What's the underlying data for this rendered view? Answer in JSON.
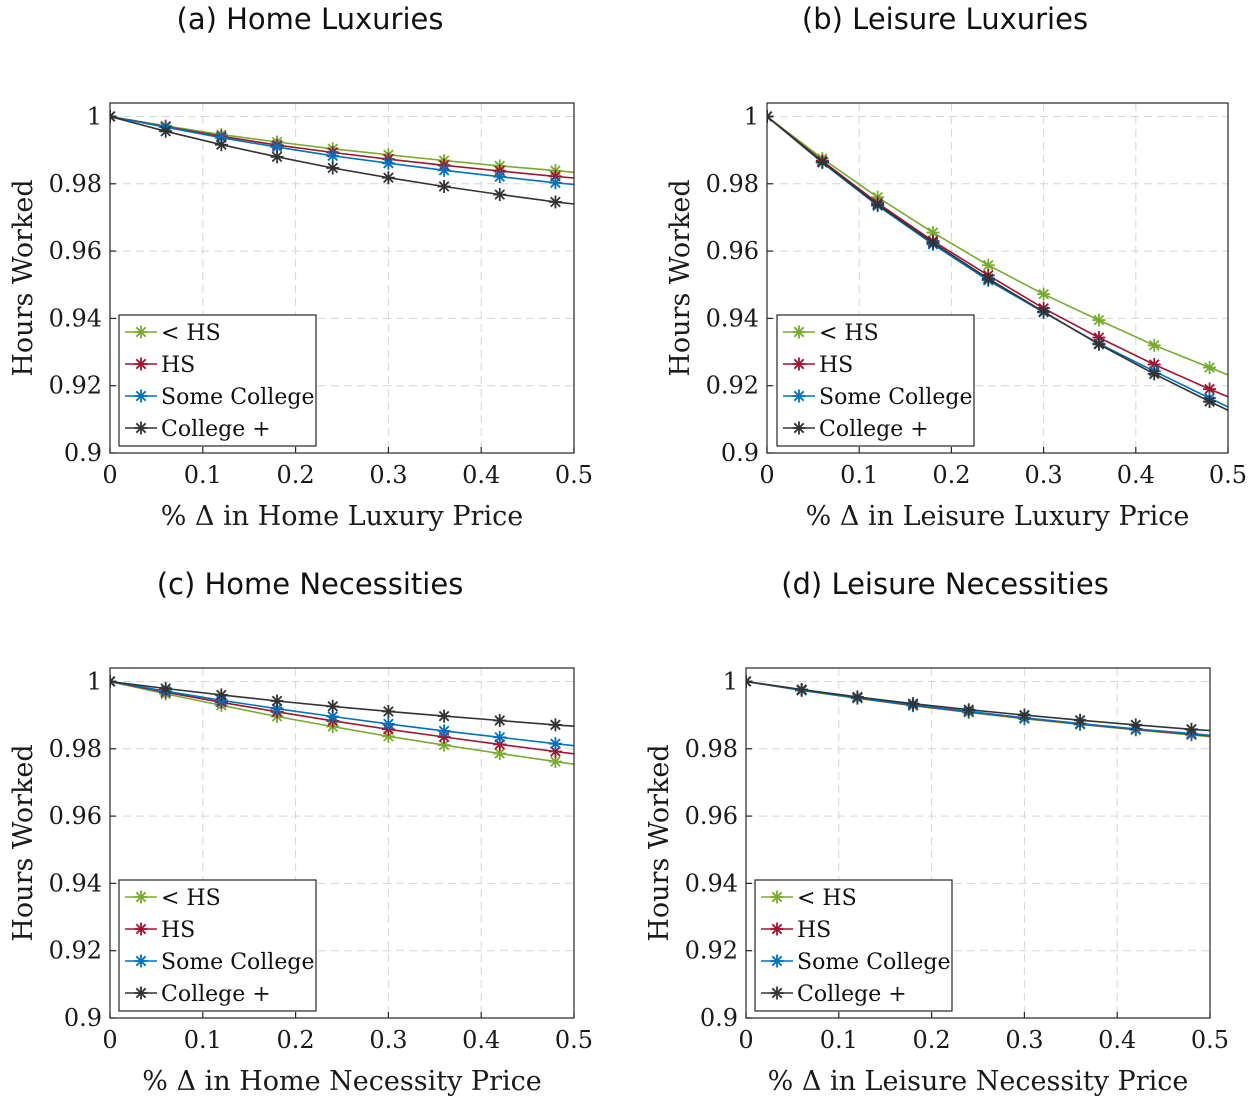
{
  "colors": {
    "lt_hs": "#77AC30",
    "hs": "#A2142F",
    "some_college": "#0072BD",
    "college_plus": "#333333"
  },
  "chart_data": [
    {
      "type": "line",
      "title": "(a) Home Luxuries",
      "xlabel": "% Δ in Home Luxury Price",
      "ylabel": "Hours Worked",
      "xlim": [
        0,
        0.5
      ],
      "ylim": [
        0.9,
        1.004
      ],
      "xticks": [
        "0",
        "0.1",
        "0.2",
        "0.3",
        "0.4",
        "0.5"
      ],
      "yticks": [
        "0.9",
        "0.92",
        "0.94",
        "0.96",
        "0.98",
        "1"
      ],
      "grid": true,
      "legend_position": "bottom-left",
      "x": [
        0,
        0.06,
        0.12,
        0.18,
        0.24,
        0.3,
        0.36,
        0.42,
        0.48,
        0.5
      ],
      "series": [
        {
          "name": "< HS",
          "color_key": "lt_hs",
          "values": [
            1,
            0.9972,
            0.9946,
            0.9924,
            0.9904,
            0.9886,
            0.9869,
            0.9853,
            0.9839,
            0.9834
          ]
        },
        {
          "name": "HS",
          "color_key": "hs",
          "values": [
            1,
            0.997,
            0.9941,
            0.9915,
            0.9893,
            0.9873,
            0.9855,
            0.9838,
            0.9822,
            0.9817
          ]
        },
        {
          "name": "Some College",
          "color_key": "some_college",
          "values": [
            1,
            0.9968,
            0.9937,
            0.9909,
            0.9883,
            0.9861,
            0.984,
            0.9821,
            0.9803,
            0.9798
          ]
        },
        {
          "name": "College +",
          "color_key": "college_plus",
          "values": [
            1,
            0.9956,
            0.9916,
            0.988,
            0.9847,
            0.9818,
            0.9792,
            0.9768,
            0.9746,
            0.974
          ]
        }
      ]
    },
    {
      "type": "line",
      "title": "(b) Leisure Luxuries",
      "xlabel": "% Δ in Leisure Luxury Price",
      "ylabel": "Hours Worked",
      "xlim": [
        0,
        0.5
      ],
      "ylim": [
        0.9,
        1.004
      ],
      "xticks": [
        "0",
        "0.1",
        "0.2",
        "0.3",
        "0.4",
        "0.5"
      ],
      "yticks": [
        "0.9",
        "0.92",
        "0.94",
        "0.96",
        "0.98",
        "1"
      ],
      "grid": true,
      "legend_position": "bottom-left",
      "x": [
        0,
        0.06,
        0.12,
        0.18,
        0.24,
        0.3,
        0.36,
        0.42,
        0.48,
        0.5
      ],
      "series": [
        {
          "name": "< HS",
          "color_key": "lt_hs",
          "values": [
            1,
            0.9875,
            0.976,
            0.9655,
            0.9558,
            0.9472,
            0.9395,
            0.932,
            0.9254,
            0.9232
          ]
        },
        {
          "name": "HS",
          "color_key": "hs",
          "values": [
            1,
            0.9868,
            0.9743,
            0.963,
            0.9528,
            0.943,
            0.9343,
            0.9263,
            0.919,
            0.9167
          ]
        },
        {
          "name": "Some College",
          "color_key": "some_college",
          "values": [
            1,
            0.9863,
            0.9735,
            0.962,
            0.9513,
            0.9418,
            0.9325,
            0.9243,
            0.9163,
            0.9137
          ]
        },
        {
          "name": "College +",
          "color_key": "college_plus",
          "values": [
            1,
            0.9865,
            0.9738,
            0.9625,
            0.9518,
            0.942,
            0.9323,
            0.9235,
            0.9153,
            0.9127
          ]
        }
      ]
    },
    {
      "type": "line",
      "title": "(c) Home Necessities",
      "xlabel": "% Δ in Home Necessity Price",
      "ylabel": "Hours Worked",
      "xlim": [
        0,
        0.5
      ],
      "ylim": [
        0.9,
        1.004
      ],
      "xticks": [
        "0",
        "0.1",
        "0.2",
        "0.3",
        "0.4",
        "0.5"
      ],
      "yticks": [
        "0.9",
        "0.92",
        "0.94",
        "0.96",
        "0.98",
        "1"
      ],
      "grid": true,
      "legend_position": "bottom-left",
      "x": [
        0,
        0.06,
        0.12,
        0.18,
        0.24,
        0.3,
        0.36,
        0.42,
        0.48,
        0.5
      ],
      "series": [
        {
          "name": "< HS",
          "color_key": "lt_hs",
          "values": [
            1,
            0.9963,
            0.9929,
            0.9896,
            0.9866,
            0.9837,
            0.9811,
            0.9786,
            0.9762,
            0.9754
          ]
        },
        {
          "name": "HS",
          "color_key": "hs",
          "values": [
            1,
            0.9968,
            0.9938,
            0.991,
            0.9883,
            0.9858,
            0.9835,
            0.9813,
            0.9792,
            0.9785
          ]
        },
        {
          "name": "Some College",
          "color_key": "some_college",
          "values": [
            1,
            0.9971,
            0.9944,
            0.9919,
            0.9896,
            0.9874,
            0.9853,
            0.9834,
            0.9815,
            0.9809
          ]
        },
        {
          "name": "College +",
          "color_key": "college_plus",
          "values": [
            1,
            0.9979,
            0.996,
            0.9942,
            0.9926,
            0.9911,
            0.9897,
            0.9884,
            0.9871,
            0.9867
          ]
        }
      ]
    },
    {
      "type": "line",
      "title": "(d) Leisure Necessities",
      "xlabel": "% Δ in Leisure Necessity Price",
      "ylabel": "Hours Worked",
      "xlim": [
        0,
        0.5
      ],
      "ylim": [
        0.9,
        1.004
      ],
      "xticks": [
        "0",
        "0.1",
        "0.2",
        "0.3",
        "0.4",
        "0.5"
      ],
      "yticks": [
        "0.9",
        "0.92",
        "0.94",
        "0.96",
        "0.98",
        "1"
      ],
      "grid": true,
      "legend_position": "bottom-left",
      "x": [
        0,
        0.06,
        0.12,
        0.18,
        0.24,
        0.3,
        0.36,
        0.42,
        0.48,
        0.5
      ],
      "series": [
        {
          "name": "< HS",
          "color_key": "lt_hs",
          "values": [
            1,
            0.9973,
            0.995,
            0.9928,
            0.9908,
            0.9889,
            0.9872,
            0.9856,
            0.9841,
            0.9836
          ]
        },
        {
          "name": "HS",
          "color_key": "hs",
          "values": [
            1,
            0.9974,
            0.9951,
            0.9929,
            0.991,
            0.9891,
            0.9874,
            0.9858,
            0.9843,
            0.9838
          ]
        },
        {
          "name": "Some College",
          "color_key": "some_college",
          "values": [
            1,
            0.9974,
            0.9951,
            0.993,
            0.9911,
            0.9892,
            0.9875,
            0.9859,
            0.9845,
            0.984
          ]
        },
        {
          "name": "College +",
          "color_key": "college_plus",
          "values": [
            1,
            0.9976,
            0.9954,
            0.9934,
            0.9916,
            0.99,
            0.9885,
            0.9871,
            0.9858,
            0.9854
          ]
        }
      ]
    }
  ]
}
